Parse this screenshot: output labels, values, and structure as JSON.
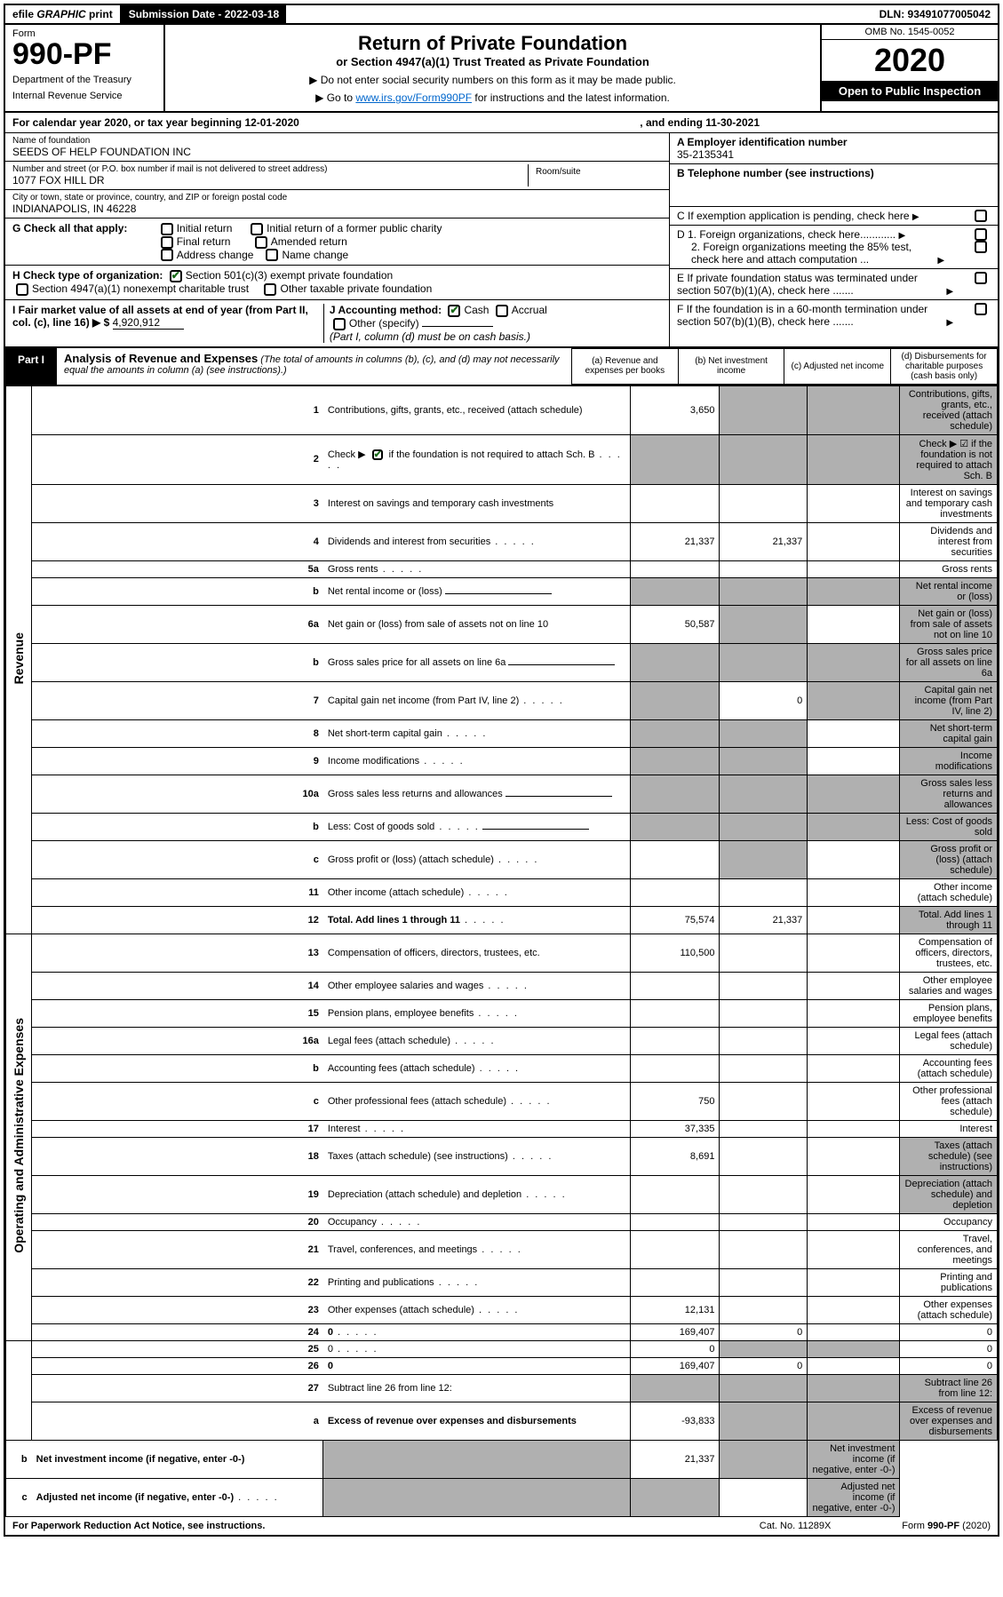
{
  "topbar": {
    "efile_prefix": "efile",
    "efile_graphic": "GRAPHIC",
    "efile_print": "print",
    "submission_label": "Submission Date - 2022-03-18",
    "dln": "DLN: 93491077005042"
  },
  "header": {
    "form_label": "Form",
    "form_number": "990-PF",
    "dept1": "Department of the Treasury",
    "dept2": "Internal Revenue Service",
    "title": "Return of Private Foundation",
    "subtitle": "or Section 4947(a)(1) Trust Treated as Private Foundation",
    "instr1": "▶ Do not enter social security numbers on this form as it may be made public.",
    "instr2_pre": "▶ Go to ",
    "instr2_link": "www.irs.gov/Form990PF",
    "instr2_post": " for instructions and the latest information.",
    "omb": "OMB No. 1545-0052",
    "year": "2020",
    "open": "Open to Public Inspection"
  },
  "calendar": {
    "text": "For calendar year 2020, or tax year beginning 12-01-2020",
    "ending": ", and ending 11-30-2021"
  },
  "info_left": {
    "name_label": "Name of foundation",
    "name": "SEEDS OF HELP FOUNDATION INC",
    "addr_label": "Number and street (or P.O. box number if mail is not delivered to street address)",
    "addr": "1077 FOX HILL DR",
    "room_label": "Room/suite",
    "city_label": "City or town, state or province, country, and ZIP or foreign postal code",
    "city": "INDIANAPOLIS, IN  46228",
    "g_label": "G Check all that apply:",
    "g_opts": [
      "Initial return",
      "Initial return of a former public charity",
      "Final return",
      "Amended return",
      "Address change",
      "Name change"
    ],
    "h_label": "H Check type of organization:",
    "h_opt1": "Section 501(c)(3) exempt private foundation",
    "h_opt2": "Section 4947(a)(1) nonexempt charitable trust",
    "h_opt3": "Other taxable private foundation",
    "i_label": "I Fair market value of all assets at end of year (from Part II, col. (c), line 16) ▶ $",
    "i_value": "4,920,912",
    "j_label": "J Accounting method:",
    "j_cash": "Cash",
    "j_accrual": "Accrual",
    "j_other": "Other (specify)",
    "j_note": "(Part I, column (d) must be on cash basis.)"
  },
  "info_right": {
    "a_label": "A Employer identification number",
    "a_value": "35-2135341",
    "b_label": "B Telephone number (see instructions)",
    "c_label": "C If exemption application is pending, check here",
    "d1": "D 1. Foreign organizations, check here............",
    "d2": "2. Foreign organizations meeting the 85% test, check here and attach computation ...",
    "e": "E If private foundation status was terminated under section 507(b)(1)(A), check here .......",
    "f": "F If the foundation is in a 60-month termination under section 507(b)(1)(B), check here ......."
  },
  "part1": {
    "tab": "Part I",
    "title": "Analysis of Revenue and Expenses",
    "note": "(The total of amounts in columns (b), (c), and (d) may not necessarily equal the amounts in column (a) (see instructions).)",
    "col_a": "(a) Revenue and expenses per books",
    "col_b": "(b) Net investment income",
    "col_c": "(c) Adjusted net income",
    "col_d": "(d) Disbursements for charitable purposes (cash basis only)",
    "vlabel_rev": "Revenue",
    "vlabel_exp": "Operating and Administrative Expenses"
  },
  "rows": [
    {
      "n": "1",
      "d": "Contributions, gifts, grants, etc., received (attach schedule)",
      "a": "3,650",
      "b": "",
      "grey_b": true,
      "grey_c": true,
      "grey_d": true
    },
    {
      "n": "2",
      "d": "Check ▶ ☑ if the foundation is not required to attach Sch. B",
      "dots": true,
      "grey_a": true,
      "grey_b": true,
      "grey_c": true,
      "grey_d": true,
      "checked": true
    },
    {
      "n": "3",
      "d": "Interest on savings and temporary cash investments",
      "a": "",
      "b": ""
    },
    {
      "n": "4",
      "d": "Dividends and interest from securities",
      "dots": true,
      "a": "21,337",
      "b": "21,337"
    },
    {
      "n": "5a",
      "d": "Gross rents",
      "dots": true
    },
    {
      "n": "b",
      "d": "Net rental income or (loss)",
      "und": true,
      "grey_a": true,
      "grey_b": true,
      "grey_c": true,
      "grey_d": true
    },
    {
      "n": "6a",
      "d": "Net gain or (loss) from sale of assets not on line 10",
      "a": "50,587",
      "grey_b": true,
      "grey_d": true
    },
    {
      "n": "b",
      "d": "Gross sales price for all assets on line 6a",
      "und": true,
      "grey_a": true,
      "grey_b": true,
      "grey_c": true,
      "grey_d": true
    },
    {
      "n": "7",
      "d": "Capital gain net income (from Part IV, line 2)",
      "dots": true,
      "grey_a": true,
      "b": "0",
      "grey_c": true,
      "grey_d": true
    },
    {
      "n": "8",
      "d": "Net short-term capital gain",
      "dots": true,
      "grey_a": true,
      "grey_b": true,
      "grey_d": true
    },
    {
      "n": "9",
      "d": "Income modifications",
      "dots": true,
      "grey_a": true,
      "grey_b": true,
      "grey_d": true
    },
    {
      "n": "10a",
      "d": "Gross sales less returns and allowances",
      "und": true,
      "grey_a": true,
      "grey_b": true,
      "grey_c": true,
      "grey_d": true
    },
    {
      "n": "b",
      "d": "Less: Cost of goods sold",
      "dots": true,
      "und": true,
      "grey_a": true,
      "grey_b": true,
      "grey_c": true,
      "grey_d": true
    },
    {
      "n": "c",
      "d": "Gross profit or (loss) (attach schedule)",
      "dots": true,
      "grey_b": true,
      "grey_d": true
    },
    {
      "n": "11",
      "d": "Other income (attach schedule)",
      "dots": true
    },
    {
      "n": "12",
      "d": "Total. Add lines 1 through 11",
      "bold": true,
      "dots": true,
      "a": "75,574",
      "b": "21,337",
      "grey_d": true
    },
    {
      "n": "13",
      "d": "Compensation of officers, directors, trustees, etc.",
      "a": "110,500"
    },
    {
      "n": "14",
      "d": "Other employee salaries and wages",
      "dots": true
    },
    {
      "n": "15",
      "d": "Pension plans, employee benefits",
      "dots": true
    },
    {
      "n": "16a",
      "d": "Legal fees (attach schedule)",
      "dots": true
    },
    {
      "n": "b",
      "d": "Accounting fees (attach schedule)",
      "dots": true
    },
    {
      "n": "c",
      "d": "Other professional fees (attach schedule)",
      "dots": true,
      "a": "750"
    },
    {
      "n": "17",
      "d": "Interest",
      "dots": true,
      "a": "37,335"
    },
    {
      "n": "18",
      "d": "Taxes (attach schedule) (see instructions)",
      "dots": true,
      "a": "8,691",
      "grey_d": true
    },
    {
      "n": "19",
      "d": "Depreciation (attach schedule) and depletion",
      "dots": true,
      "grey_d": true
    },
    {
      "n": "20",
      "d": "Occupancy",
      "dots": true
    },
    {
      "n": "21",
      "d": "Travel, conferences, and meetings",
      "dots": true
    },
    {
      "n": "22",
      "d": "Printing and publications",
      "dots": true
    },
    {
      "n": "23",
      "d": "Other expenses (attach schedule)",
      "dots": true,
      "a": "12,131"
    },
    {
      "n": "24",
      "d": "0",
      "bold": true,
      "dots": true,
      "a": "169,407",
      "b": "0"
    },
    {
      "n": "25",
      "d": "0",
      "dots": true,
      "a": "0",
      "grey_b": true,
      "grey_c": true
    },
    {
      "n": "26",
      "d": "0",
      "bold": true,
      "a": "169,407",
      "b": "0"
    },
    {
      "n": "27",
      "d": "Subtract line 26 from line 12:",
      "grey_a": true,
      "grey_b": true,
      "grey_c": true,
      "grey_d": true
    },
    {
      "n": "a",
      "d": "Excess of revenue over expenses and disbursements",
      "bold": true,
      "a": "-93,833",
      "grey_b": true,
      "grey_c": true,
      "grey_d": true
    },
    {
      "n": "b",
      "d": "Net investment income (if negative, enter -0-)",
      "bold": true,
      "grey_a": true,
      "b": "21,337",
      "grey_c": true,
      "grey_d": true
    },
    {
      "n": "c",
      "d": "Adjusted net income (if negative, enter -0-)",
      "bold": true,
      "dots": true,
      "grey_a": true,
      "grey_b": true,
      "grey_d": true
    }
  ],
  "footer": {
    "left": "For Paperwork Reduction Act Notice, see instructions.",
    "mid": "Cat. No. 11289X",
    "right": "Form 990-PF (2020)"
  },
  "colors": {
    "link": "#0066cc",
    "check": "#1a6b1a",
    "grey": "#b0b0b0"
  }
}
